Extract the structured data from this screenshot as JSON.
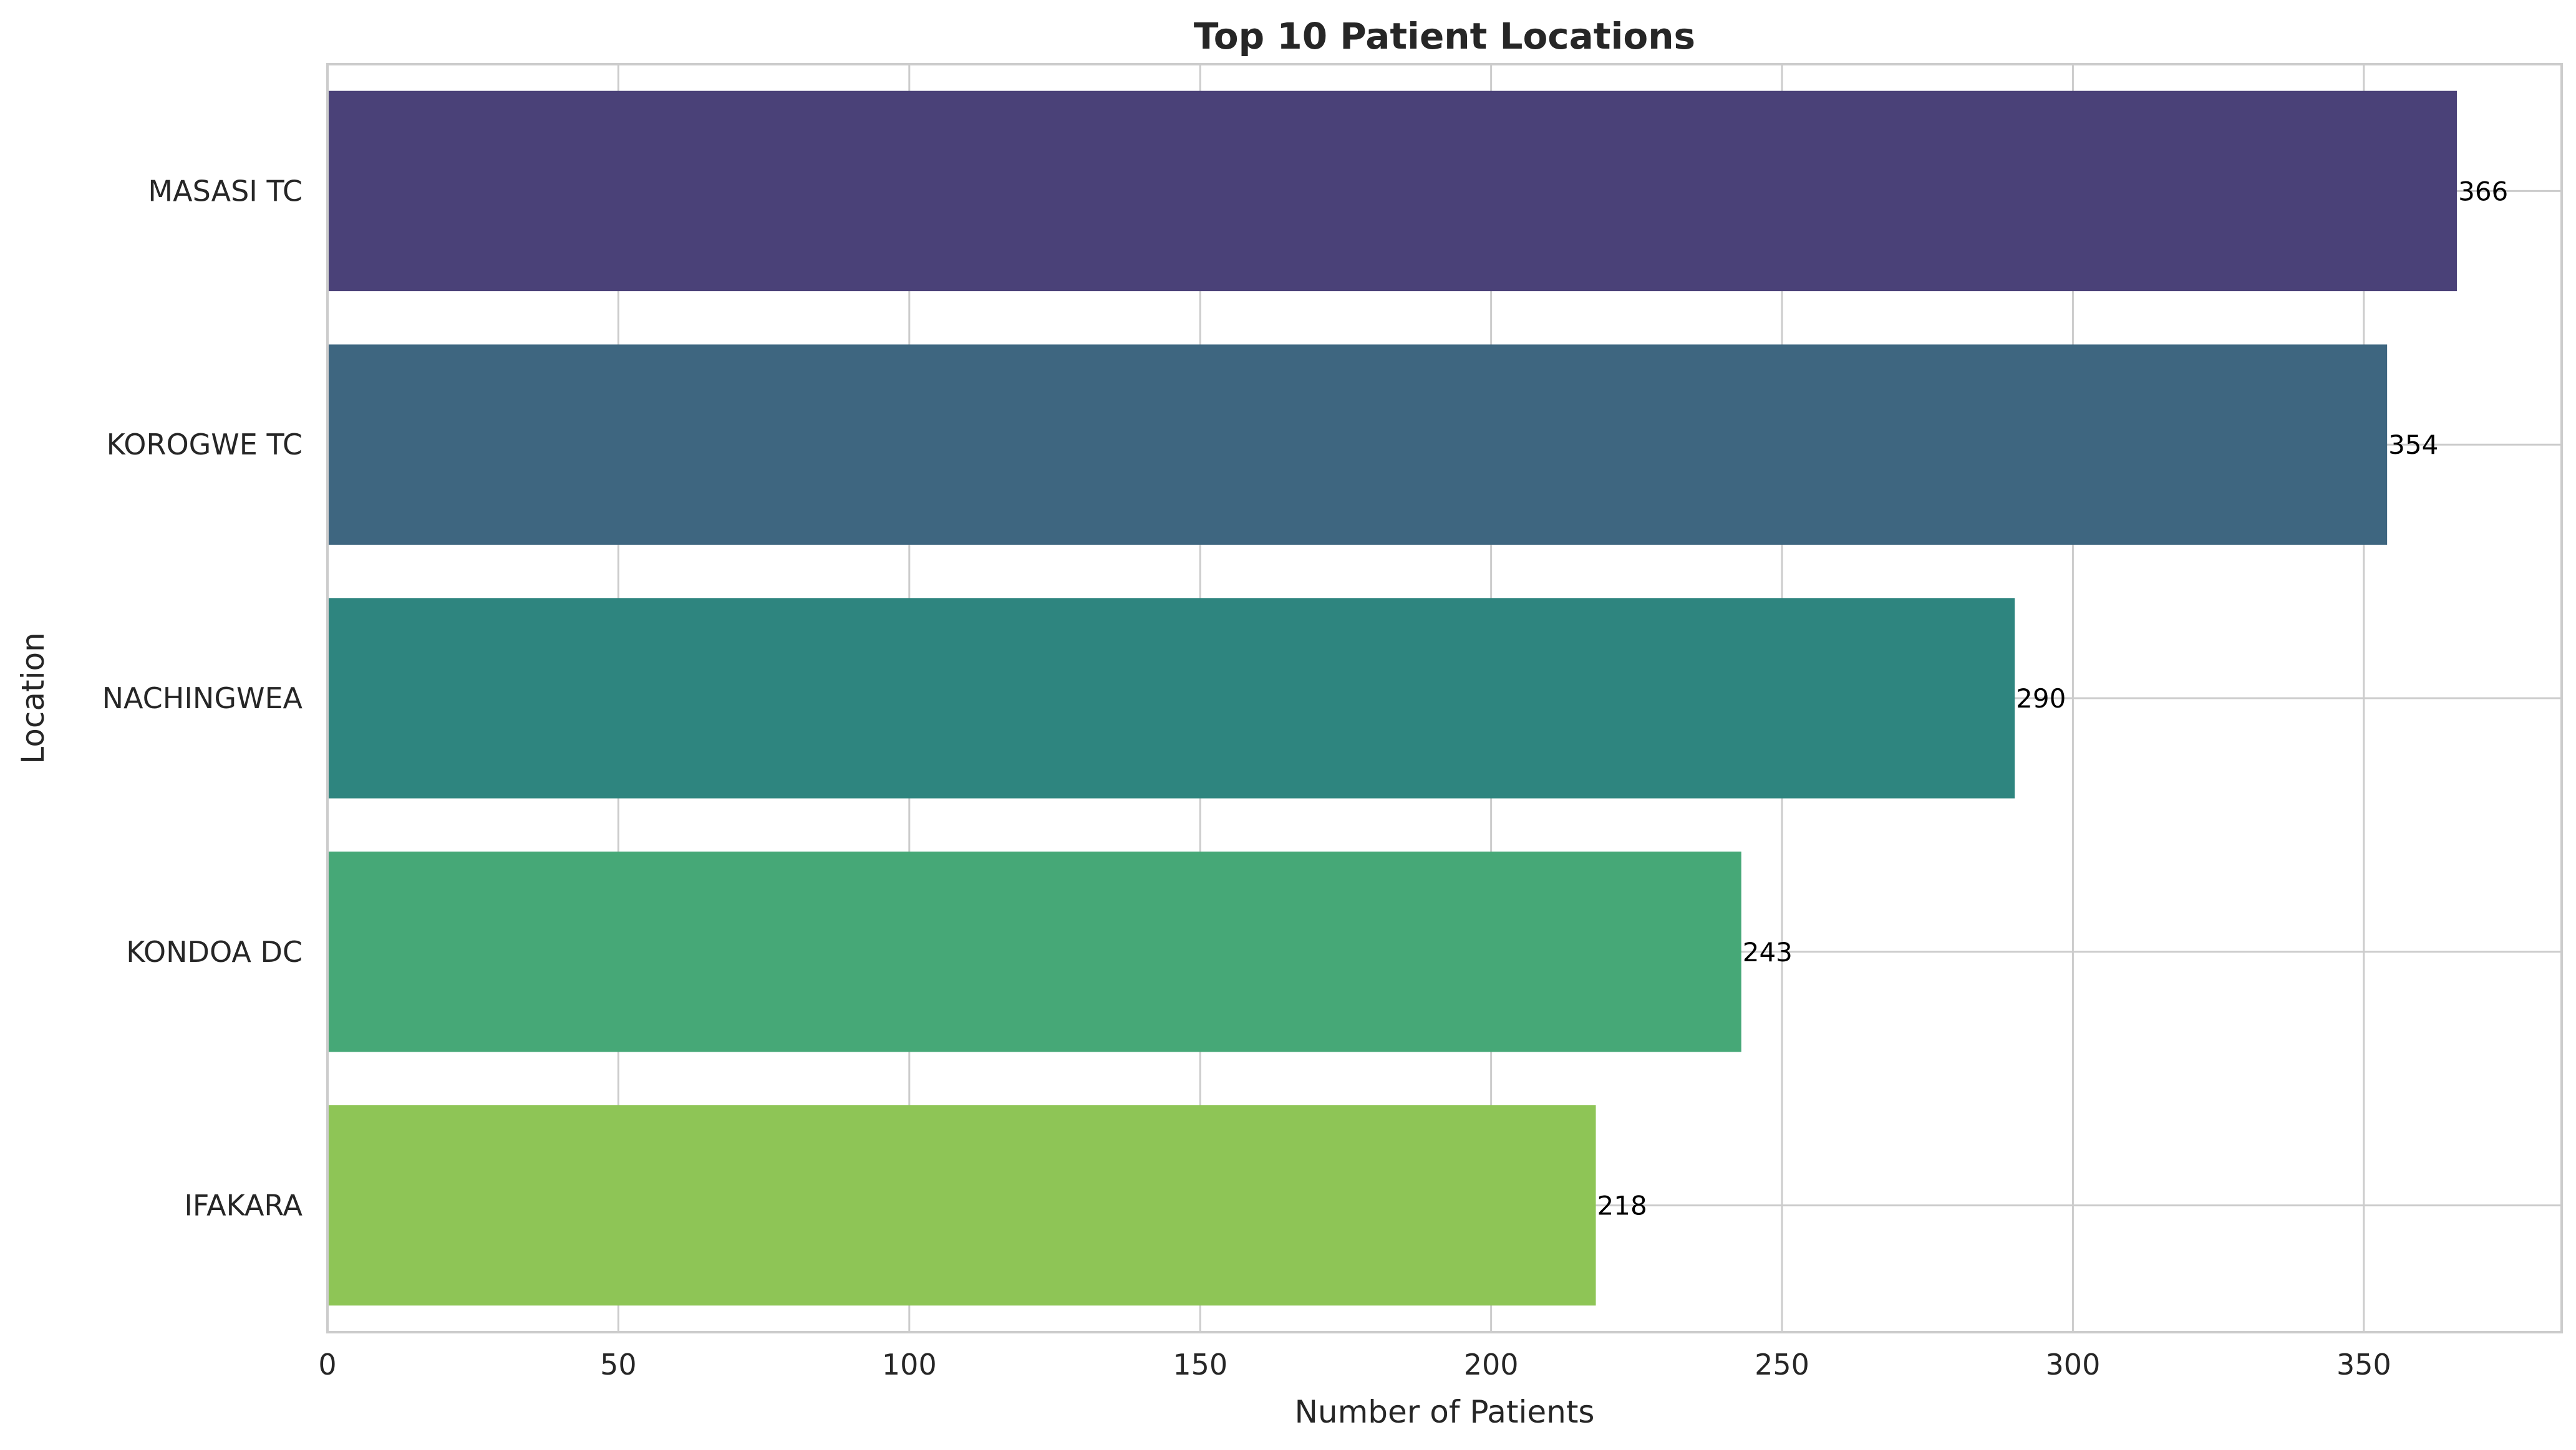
{
  "chart_data": {
    "type": "bar",
    "orientation": "horizontal",
    "title": "Top 10 Patient Locations",
    "xlabel": "Number of Patients",
    "ylabel": "Location",
    "categories": [
      "MASASI TC",
      "KOROGWE TC",
      "NACHINGWEA",
      "KONDOA DC",
      "IFAKARA"
    ],
    "values": [
      366,
      354,
      290,
      243,
      218
    ],
    "value_labels": [
      "366",
      "354",
      "290",
      "243",
      "218"
    ],
    "xlim": [
      0,
      384
    ],
    "x_ticks": [
      0,
      50,
      100,
      150,
      200,
      250,
      300,
      350
    ],
    "x_tick_labels": [
      "0",
      "50",
      "100",
      "150",
      "200",
      "250",
      "300",
      "350"
    ],
    "grid": true,
    "colors": [
      "#4a4178",
      "#3e6680",
      "#2e857f",
      "#46a877",
      "#8ec556"
    ]
  }
}
